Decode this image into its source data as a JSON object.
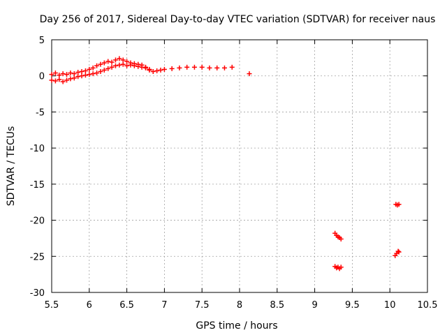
{
  "chart_data": {
    "type": "scatter",
    "title": "Day 256 of 2017, Sidereal Day-to-day VTEC variation (SDTVAR) for receiver naus",
    "xlabel": "GPS time / hours",
    "ylabel": "SDTVAR / TECUs",
    "xlim": [
      5.5,
      10.5
    ],
    "ylim": [
      -30,
      5
    ],
    "xticks": [
      5.5,
      6,
      6.5,
      7,
      7.5,
      8,
      8.5,
      9,
      9.5,
      10,
      10.5
    ],
    "xtick_labels": [
      "5.5",
      "6",
      "6.5",
      "7",
      "7.5",
      "8",
      "8.5",
      "9",
      "9.5",
      "10",
      "10.5"
    ],
    "yticks": [
      5,
      0,
      -5,
      -10,
      -15,
      -20,
      -25,
      -30
    ],
    "ytick_labels": [
      "5",
      "0",
      "-5",
      "-10",
      "-15",
      "-20",
      "-25",
      "-30"
    ],
    "grid": true,
    "marker": "plus",
    "color": "#ff0000",
    "series": [
      {
        "name": "SDTVAR",
        "x": [
          5.5,
          5.55,
          5.6,
          5.65,
          5.7,
          5.75,
          5.8,
          5.85,
          5.9,
          5.95,
          6.0,
          6.05,
          6.1,
          6.15,
          6.2,
          6.25,
          6.3,
          6.35,
          6.4,
          6.45,
          6.5,
          6.55,
          6.6,
          6.65,
          6.7,
          6.75,
          6.8,
          6.85,
          6.9,
          6.95,
          7.0,
          7.1,
          7.2,
          7.3,
          7.4,
          7.5,
          7.6,
          7.7,
          7.8,
          7.9,
          5.5,
          5.55,
          5.6,
          5.65,
          5.7,
          5.75,
          5.8,
          5.85,
          5.9,
          5.95,
          6.0,
          6.05,
          6.1,
          6.15,
          6.2,
          6.25,
          6.3,
          6.35,
          6.4,
          6.45,
          6.5,
          6.55,
          6.6,
          6.65,
          6.7,
          6.75,
          6.8,
          8.13,
          9.27,
          9.29,
          9.31,
          9.33,
          9.35,
          9.27,
          9.29,
          9.31,
          9.33,
          9.35,
          10.08,
          10.1,
          10.12,
          10.07,
          10.09,
          10.11,
          10.12
        ],
        "y": [
          0.2,
          0.4,
          0.1,
          0.3,
          0.2,
          0.4,
          0.3,
          0.5,
          0.6,
          0.7,
          0.9,
          1.1,
          1.4,
          1.6,
          1.8,
          2.0,
          1.9,
          2.2,
          2.4,
          2.2,
          2.0,
          1.8,
          1.7,
          1.6,
          1.5,
          1.2,
          0.8,
          0.6,
          0.7,
          0.8,
          0.9,
          1.0,
          1.1,
          1.2,
          1.2,
          1.2,
          1.1,
          1.1,
          1.1,
          1.2,
          -0.6,
          -0.7,
          -0.5,
          -0.8,
          -0.6,
          -0.4,
          -0.3,
          -0.1,
          0.0,
          0.1,
          0.2,
          0.3,
          0.4,
          0.6,
          0.8,
          1.0,
          1.2,
          1.4,
          1.5,
          1.6,
          1.4,
          1.5,
          1.4,
          1.3,
          1.2,
          1.1,
          0.9,
          0.3,
          -21.8,
          -22.1,
          -22.3,
          -22.4,
          -22.6,
          -26.4,
          -26.6,
          -26.5,
          -26.7,
          -26.5,
          -17.8,
          -17.9,
          -17.8,
          -24.9,
          -24.6,
          -24.3,
          -24.4
        ]
      }
    ]
  }
}
